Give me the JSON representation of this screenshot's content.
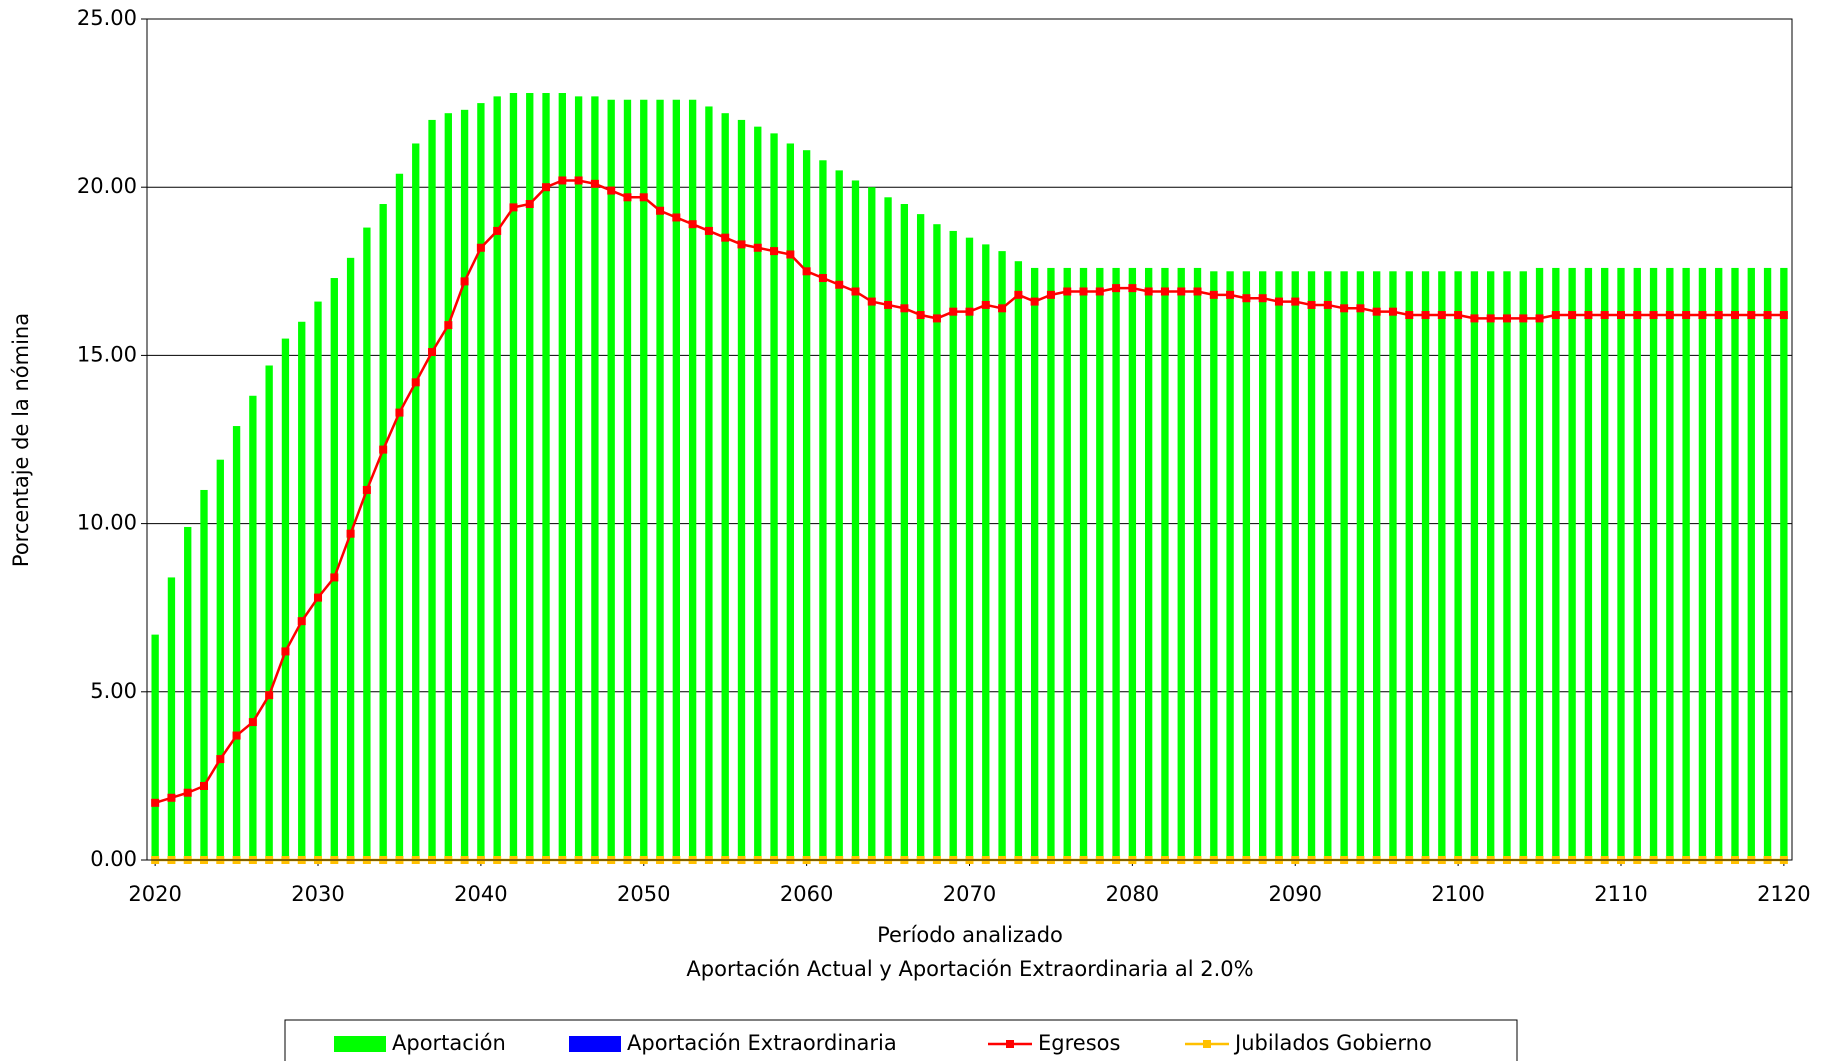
{
  "chart_data": {
    "type": "bar-line",
    "x_axis_label": "Período analizado",
    "subtitle": "Aportación Actual y Aportación Extraordinaria al 2.0%",
    "y_axis_label": "Porcentaje de la nómina",
    "x": [
      2020,
      2021,
      2022,
      2023,
      2024,
      2025,
      2026,
      2027,
      2028,
      2029,
      2030,
      2031,
      2032,
      2033,
      2034,
      2035,
      2036,
      2037,
      2038,
      2039,
      2040,
      2041,
      2042,
      2043,
      2044,
      2045,
      2046,
      2047,
      2048,
      2049,
      2050,
      2051,
      2052,
      2053,
      2054,
      2055,
      2056,
      2057,
      2058,
      2059,
      2060,
      2061,
      2062,
      2063,
      2064,
      2065,
      2066,
      2067,
      2068,
      2069,
      2070,
      2071,
      2072,
      2073,
      2074,
      2075,
      2076,
      2077,
      2078,
      2079,
      2080,
      2081,
      2082,
      2083,
      2084,
      2085,
      2086,
      2087,
      2088,
      2089,
      2090,
      2091,
      2092,
      2093,
      2094,
      2095,
      2096,
      2097,
      2098,
      2099,
      2100,
      2101,
      2102,
      2103,
      2104,
      2105,
      2106,
      2107,
      2108,
      2109,
      2110,
      2111,
      2112,
      2113,
      2114,
      2115,
      2116,
      2117,
      2118,
      2119,
      2120
    ],
    "series": [
      {
        "name": "Aportación",
        "kind": "bar",
        "color": "#00ff00",
        "values": [
          6.7,
          8.4,
          9.9,
          11.0,
          11.9,
          12.9,
          13.8,
          14.7,
          15.5,
          16.0,
          16.6,
          17.3,
          17.9,
          18.8,
          19.5,
          20.4,
          21.3,
          22.0,
          22.2,
          22.3,
          22.5,
          22.7,
          22.8,
          22.8,
          22.8,
          22.8,
          22.7,
          22.7,
          22.6,
          22.6,
          22.6,
          22.6,
          22.6,
          22.6,
          22.4,
          22.2,
          22.0,
          21.8,
          21.6,
          21.3,
          21.1,
          20.8,
          20.5,
          20.2,
          20.0,
          19.7,
          19.5,
          19.2,
          18.9,
          18.7,
          18.5,
          18.3,
          18.1,
          17.8,
          17.6,
          17.6,
          17.6,
          17.6,
          17.6,
          17.6,
          17.6,
          17.6,
          17.6,
          17.6,
          17.6,
          17.5,
          17.5,
          17.5,
          17.5,
          17.5,
          17.5,
          17.5,
          17.5,
          17.5,
          17.5,
          17.5,
          17.5,
          17.5,
          17.5,
          17.5,
          17.5,
          17.5,
          17.5,
          17.5,
          17.5,
          17.6,
          17.6,
          17.6,
          17.6,
          17.6,
          17.6,
          17.6,
          17.6,
          17.6,
          17.6,
          17.6,
          17.6,
          17.6,
          17.6,
          17.6,
          17.6
        ]
      },
      {
        "name": "Aportación Extraordinaria",
        "kind": "bar",
        "color": "#0000ff",
        "values": [
          0,
          0,
          0,
          0,
          0,
          0,
          0,
          0,
          0,
          0,
          0,
          0,
          0,
          0,
          0,
          0,
          0,
          0,
          0,
          0,
          0,
          0,
          0,
          0,
          0,
          0,
          0,
          0,
          0,
          0,
          0,
          0,
          0,
          0,
          0,
          0,
          0,
          0,
          0,
          0,
          0,
          0,
          0,
          0,
          0,
          0,
          0,
          0,
          0,
          0,
          0,
          0,
          0,
          0,
          0,
          0,
          0,
          0,
          0,
          0,
          0,
          0,
          0,
          0,
          0,
          0,
          0,
          0,
          0,
          0,
          0,
          0,
          0,
          0,
          0,
          0,
          0,
          0,
          0,
          0,
          0,
          0,
          0,
          0,
          0,
          0,
          0,
          0,
          0,
          0,
          0,
          0,
          0,
          0,
          0,
          0,
          0,
          0,
          0,
          0,
          0
        ]
      },
      {
        "name": "Egresos",
        "kind": "line",
        "color": "#ff0000",
        "values": [
          1.7,
          1.85,
          2.0,
          2.2,
          3.0,
          3.7,
          4.1,
          4.9,
          6.2,
          7.1,
          7.8,
          8.4,
          9.7,
          11.0,
          12.2,
          13.3,
          14.2,
          15.1,
          15.9,
          17.2,
          18.2,
          18.7,
          19.4,
          19.5,
          20.0,
          20.2,
          20.2,
          20.1,
          19.9,
          19.7,
          19.7,
          19.3,
          19.1,
          18.9,
          18.7,
          18.5,
          18.3,
          18.2,
          18.1,
          18.0,
          17.5,
          17.3,
          17.1,
          16.9,
          16.6,
          16.5,
          16.4,
          16.2,
          16.1,
          16.3,
          16.3,
          16.5,
          16.4,
          16.8,
          16.6,
          16.8,
          16.9,
          16.9,
          16.9,
          17.0,
          17.0,
          16.9,
          16.9,
          16.9,
          16.9,
          16.8,
          16.8,
          16.7,
          16.7,
          16.6,
          16.6,
          16.5,
          16.5,
          16.4,
          16.4,
          16.3,
          16.3,
          16.2,
          16.2,
          16.2,
          16.2,
          16.1,
          16.1,
          16.1,
          16.1,
          16.1,
          16.2,
          16.2,
          16.2,
          16.2,
          16.2,
          16.2,
          16.2,
          16.2,
          16.2,
          16.2,
          16.2,
          16.2,
          16.2,
          16.2,
          16.2
        ]
      },
      {
        "name": "Jubilados Gobierno",
        "kind": "line",
        "color": "#ffc000",
        "values": [
          0,
          0,
          0,
          0,
          0,
          0,
          0,
          0,
          0,
          0,
          0,
          0,
          0,
          0,
          0,
          0,
          0,
          0,
          0,
          0,
          0,
          0,
          0,
          0,
          0,
          0,
          0,
          0,
          0,
          0,
          0,
          0,
          0,
          0,
          0,
          0,
          0,
          0,
          0,
          0,
          0,
          0,
          0,
          0,
          0,
          0,
          0,
          0,
          0,
          0,
          0,
          0,
          0,
          0,
          0,
          0,
          0,
          0,
          0,
          0,
          0,
          0,
          0,
          0,
          0,
          0,
          0,
          0,
          0,
          0,
          0,
          0,
          0,
          0,
          0,
          0,
          0,
          0,
          0,
          0,
          0,
          0,
          0,
          0,
          0,
          0,
          0,
          0,
          0,
          0,
          0,
          0,
          0,
          0,
          0,
          0,
          0,
          0,
          0,
          0,
          0
        ]
      }
    ],
    "xlim": [
      2019.5,
      2120.5
    ],
    "xticks": [
      2020,
      2030,
      2040,
      2050,
      2060,
      2070,
      2080,
      2090,
      2100,
      2110,
      2120
    ],
    "ylim": [
      0,
      25
    ],
    "yticks": [
      {
        "value": 0,
        "label": "0.00"
      },
      {
        "value": 5,
        "label": "5.00"
      },
      {
        "value": 10,
        "label": "10.00"
      },
      {
        "value": 15,
        "label": "15.00"
      },
      {
        "value": 20,
        "label": "20.00"
      },
      {
        "value": 25,
        "label": "25.00"
      }
    ],
    "grid": true,
    "legend": "bottom"
  }
}
